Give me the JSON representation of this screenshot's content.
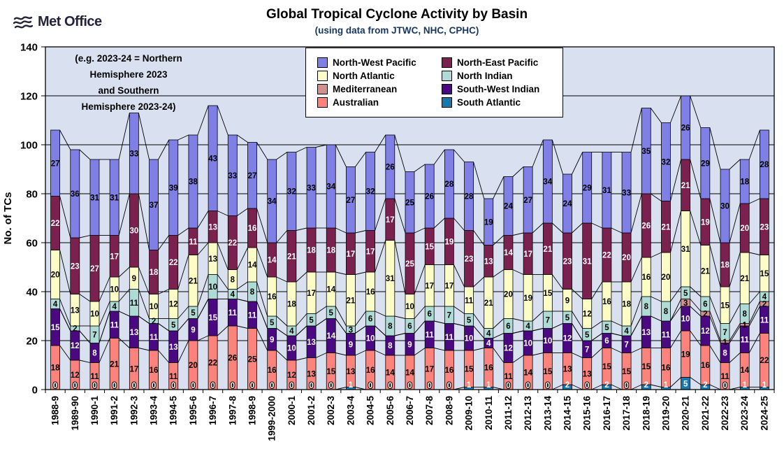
{
  "header": {
    "logo_text": "Met Office",
    "title": "Global Tropical Cyclone Activity by Basin",
    "subtitle": "(using data from JTWC, NHC, CPHC)"
  },
  "chart_data": {
    "type": "bar",
    "stacked": true,
    "title": "Global Tropical Cyclone Activity by Basin",
    "subtitle": "(using data from JTWC, NHC, CPHC)",
    "xlabel": "",
    "ylabel": "No. of TCs",
    "ylim": [
      0,
      140
    ],
    "ytick_step": 20,
    "grid": true,
    "legend_position": "top-center",
    "plot_bg": "#D9E1F0",
    "annotation_lines": [
      "(e.g. 2023-24 = Northern",
      "Hemisphere 2023",
      "and Southern",
      "Hemisphere 2023-24)"
    ],
    "categories": [
      "1988-9",
      "1989-90",
      "1990-1",
      "1991-2",
      "1992-3",
      "1993-4",
      "1994-5",
      "1995-6",
      "1996-7",
      "1997-8",
      "1998-9",
      "1999-2000",
      "2000-1",
      "2001-2",
      "2002-3",
      "2003-4",
      "2004-5",
      "2005-6",
      "2006-7",
      "2007-8",
      "2008-9",
      "2009-10",
      "2010-11",
      "2011-12",
      "2012-13",
      "2013-14",
      "2014-15",
      "2015-16",
      "2016-17",
      "2017-18",
      "2018-19",
      "2019-20",
      "2020-21",
      "2021-22",
      "2022-23",
      "2023-24",
      "2024-25"
    ],
    "stack_order_bottom_to_top": [
      "South Atlantic",
      "Australian",
      "South-West Indian",
      "Mediterranean",
      "North Indian",
      "North Atlantic",
      "North-East Pacific",
      "North-West Pacific"
    ],
    "zero_label_series": "South Atlantic",
    "series": [
      {
        "name": "North-West Pacific",
        "color": "#7F7FE6",
        "label_color": "#000000",
        "values": [
          27,
          36,
          31,
          31,
          33,
          37,
          39,
          38,
          43,
          33,
          27,
          34,
          32,
          33,
          34,
          27,
          32,
          26,
          25,
          26,
          28,
          28,
          19,
          24,
          27,
          34,
          24,
          29,
          31,
          33,
          35,
          32,
          26,
          29,
          30,
          18,
          28
        ]
      },
      {
        "name": "North-East Pacific",
        "color": "#7B2150",
        "label_color": "#FFFFFF",
        "values": [
          22,
          23,
          27,
          17,
          30,
          18,
          22,
          11,
          13,
          22,
          16,
          14,
          21,
          18,
          18,
          17,
          17,
          17,
          25,
          15,
          19,
          23,
          13,
          14,
          17,
          21,
          23,
          31,
          22,
          20,
          26,
          21,
          21,
          19,
          18,
          20,
          23
        ]
      },
      {
        "name": "North Atlantic",
        "color": "#FCFCC6",
        "label_color": "#000000",
        "values": [
          20,
          13,
          10,
          10,
          9,
          10,
          12,
          21,
          13,
          8,
          14,
          16,
          18,
          17,
          14,
          21,
          16,
          31,
          10,
          17,
          17,
          11,
          21,
          20,
          19,
          15,
          9,
          12,
          16,
          18,
          16,
          20,
          31,
          21,
          15,
          21,
          15
        ]
      },
      {
        "name": "North Indian",
        "color": "#AEDBD5",
        "label_color": "#000000",
        "values": [
          4,
          2,
          7,
          4,
          11,
          2,
          5,
          5,
          10,
          4,
          8,
          5,
          4,
          5,
          5,
          3,
          6,
          8,
          6,
          6,
          7,
          5,
          4,
          6,
          4,
          7,
          5,
          5,
          5,
          4,
          8,
          8,
          5,
          6,
          7,
          8,
          4
        ]
      },
      {
        "name": "Mediterranean",
        "color": "#D2908C",
        "label_color": "#000000",
        "values": [
          0,
          0,
          0,
          0,
          0,
          0,
          0,
          0,
          0,
          0,
          0,
          0,
          0,
          0,
          0,
          0,
          0,
          0,
          0,
          0,
          0,
          0,
          0,
          0,
          0,
          0,
          0,
          0,
          0,
          0,
          0,
          0,
          3,
          2,
          1,
          1,
          2
        ]
      },
      {
        "name": "South-West Indian",
        "color": "#4A0980",
        "label_color": "#FFFFFF",
        "values": [
          15,
          12,
          8,
          11,
          13,
          11,
          13,
          9,
          15,
          11,
          11,
          9,
          10,
          13,
          14,
          9,
          10,
          8,
          9,
          11,
          11,
          10,
          4,
          12,
          10,
          10,
          12,
          7,
          6,
          7,
          13,
          11,
          10,
          12,
          8,
          11,
          11
        ]
      },
      {
        "name": "Australian",
        "color": "#FB837B",
        "label_color": "#000000",
        "values": [
          18,
          12,
          11,
          21,
          17,
          16,
          11,
          20,
          22,
          26,
          25,
          16,
          12,
          13,
          15,
          13,
          16,
          14,
          14,
          17,
          16,
          15,
          16,
          11,
          14,
          15,
          13,
          13,
          15,
          15,
          15,
          16,
          19,
          16,
          11,
          14,
          22
        ]
      },
      {
        "name": "South Atlantic",
        "color": "#1878AC",
        "label_color": "#FFFFFF",
        "values": [
          0,
          0,
          0,
          0,
          0,
          0,
          0,
          0,
          0,
          0,
          0,
          0,
          0,
          0,
          0,
          1,
          0,
          0,
          0,
          0,
          0,
          1,
          1,
          0,
          0,
          0,
          2,
          0,
          2,
          0,
          2,
          1,
          5,
          2,
          0,
          1,
          1
        ]
      }
    ]
  }
}
